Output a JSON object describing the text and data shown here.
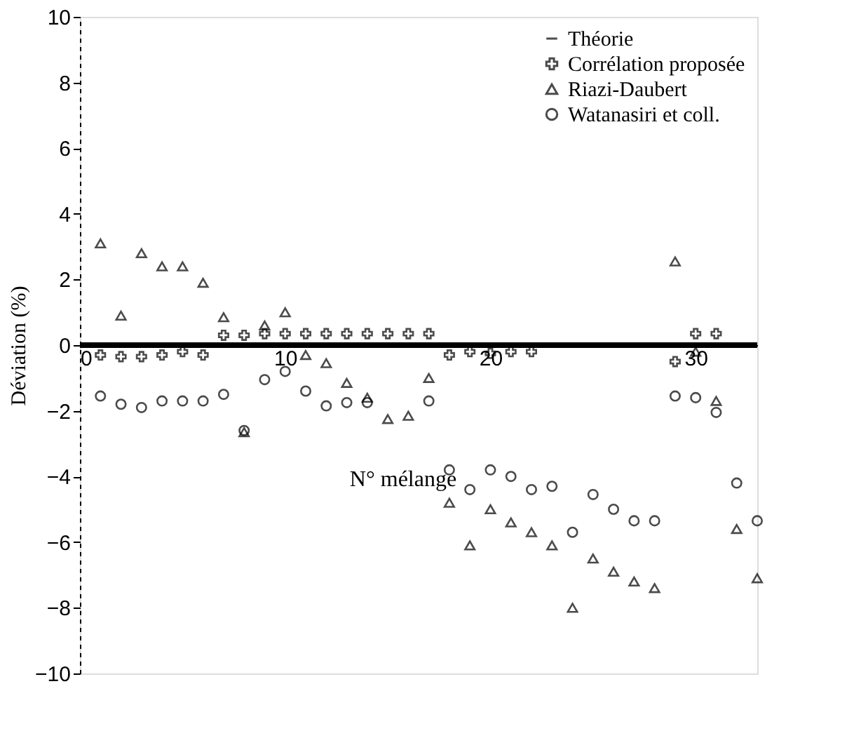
{
  "chart_data": {
    "type": "scatter",
    "xlabel": "N° mélange",
    "ylabel": "Déviation (%)",
    "x": [
      1,
      2,
      3,
      4,
      5,
      6,
      7,
      8,
      9,
      10,
      11,
      12,
      13,
      14,
      15,
      16,
      17,
      18,
      19,
      20,
      21,
      22,
      23,
      24,
      25,
      26,
      27,
      28,
      29,
      30,
      31,
      32,
      33
    ],
    "xlim": [
      0,
      33
    ],
    "xticks": [
      0,
      10,
      20,
      30
    ],
    "ylim": [
      -10,
      10
    ],
    "yticks": [
      -10,
      -8,
      -6,
      -4,
      -2,
      0,
      2,
      4,
      6,
      8,
      10
    ],
    "grid": false,
    "legend": "top right",
    "series": [
      {
        "name": "Théorie",
        "type": "line",
        "color": "#000000",
        "marker": "none",
        "line_style": "solid",
        "x": [
          0,
          33
        ],
        "values": [
          0,
          0
        ]
      },
      {
        "name": "Corrélation proposée",
        "color": "#000000",
        "marker": "cross",
        "values": [
          -0.3,
          -0.35,
          -0.35,
          -0.3,
          -0.2,
          -0.3,
          0.3,
          0.3,
          0.35,
          0.35,
          0.35,
          0.35,
          0.35,
          0.35,
          0.35,
          0.35,
          0.35,
          -0.3,
          -0.2,
          -0.25,
          -0.2,
          -0.2,
          null,
          null,
          null,
          null,
          null,
          null,
          -0.5,
          0.35,
          0.35,
          null,
          null
        ]
      },
      {
        "name": "Riazi-Daubert",
        "color": "#000000",
        "marker": "triangle",
        "values": [
          3.1,
          0.9,
          2.8,
          2.4,
          2.4,
          1.9,
          0.85,
          -2.65,
          0.6,
          1.0,
          -0.3,
          -0.55,
          -1.15,
          -1.6,
          -2.25,
          -2.15,
          -1.0,
          -4.8,
          -6.1,
          -5.0,
          -5.4,
          -5.7,
          -6.1,
          -8.0,
          -6.5,
          -6.9,
          -7.2,
          -7.4,
          2.55,
          -0.2,
          -1.7,
          -5.6,
          -7.1
        ]
      },
      {
        "name": "Watanasiri et coll.",
        "color": "#000000",
        "marker": "circle",
        "values": [
          -1.55,
          -1.8,
          -1.9,
          -1.7,
          -1.7,
          -1.7,
          -1.5,
          -2.6,
          -1.05,
          -0.8,
          -1.4,
          -1.85,
          -1.75,
          -1.75,
          null,
          null,
          -1.7,
          -3.8,
          -4.4,
          -3.8,
          -4.0,
          -4.4,
          -4.3,
          -5.7,
          -4.55,
          -5.0,
          -5.35,
          -5.35,
          -1.55,
          -1.6,
          -2.05,
          -4.2,
          -5.35
        ]
      }
    ]
  }
}
